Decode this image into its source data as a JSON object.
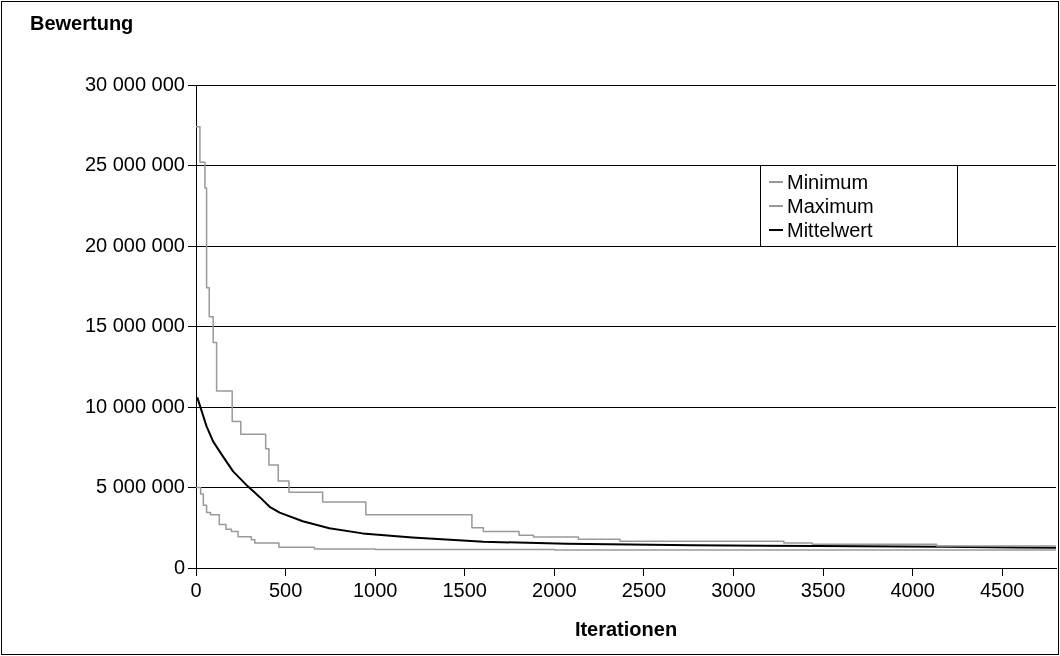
{
  "chart_data": {
    "type": "line",
    "xlabel": "Iterationen",
    "ylabel": "Bewertung",
    "xlim": [
      0,
      4800
    ],
    "xticks": [
      0,
      500,
      1000,
      1500,
      2000,
      2500,
      3000,
      3500,
      4000,
      4500
    ],
    "ylim": [
      0,
      30000000
    ],
    "yticks": [
      {
        "value": 0,
        "label": "0"
      },
      {
        "value": 5000000,
        "label": "5 000 000"
      },
      {
        "value": 10000000,
        "label": "10 000 000"
      },
      {
        "value": 15000000,
        "label": "15 000 000"
      },
      {
        "value": 20000000,
        "label": "20 000 000"
      },
      {
        "value": 25000000,
        "label": "25 000 000"
      },
      {
        "value": 30000000,
        "label": "30 000 000"
      }
    ],
    "grid": "y",
    "legend": "right",
    "marker": "none",
    "line_style": "solid",
    "series": [
      {
        "name": "Minimum",
        "type": "step",
        "color": "#999999",
        "x": [
          0,
          26,
          41,
          59,
          81,
          130,
          167,
          198,
          235,
          309,
          328,
          463,
          661,
          1000,
          2000,
          4800
        ],
        "values": [
          5000000,
          4600000,
          3900000,
          3440000,
          3300000,
          2700000,
          2400000,
          2260000,
          1940000,
          1760000,
          1550000,
          1290000,
          1180000,
          1150000,
          1120000,
          1100000
        ]
      },
      {
        "name": "Maximum",
        "type": "step",
        "color": "#999999",
        "x": [
          0,
          22,
          50,
          59,
          74,
          96,
          115,
          202,
          250,
          389,
          407,
          459,
          519,
          707,
          948,
          1540,
          1604,
          1803,
          1884,
          2134,
          2366,
          3281,
          3440,
          4134,
          4800
        ],
        "values": [
          27400000,
          25200000,
          23600000,
          17400000,
          15600000,
          14000000,
          11000000,
          9100000,
          8300000,
          7400000,
          6400000,
          5400000,
          4700000,
          4100000,
          3300000,
          2500000,
          2270000,
          2030000,
          1920000,
          1790000,
          1660000,
          1550000,
          1470000,
          1360000,
          1360000
        ]
      },
      {
        "name": "Mittelwert",
        "type": "line",
        "color": "#000000",
        "x": [
          7,
          59,
          96,
          152,
          207,
          281,
          356,
          411,
          467,
          596,
          744,
          930,
          1207,
          1512,
          1604,
          2070,
          2768,
          3467,
          4166,
          4800
        ],
        "values": [
          10600000,
          8800000,
          7850000,
          6900000,
          6000000,
          5160000,
          4400000,
          3800000,
          3440000,
          2900000,
          2470000,
          2150000,
          1900000,
          1700000,
          1630000,
          1500000,
          1420000,
          1360000,
          1320000,
          1250000
        ]
      }
    ]
  }
}
